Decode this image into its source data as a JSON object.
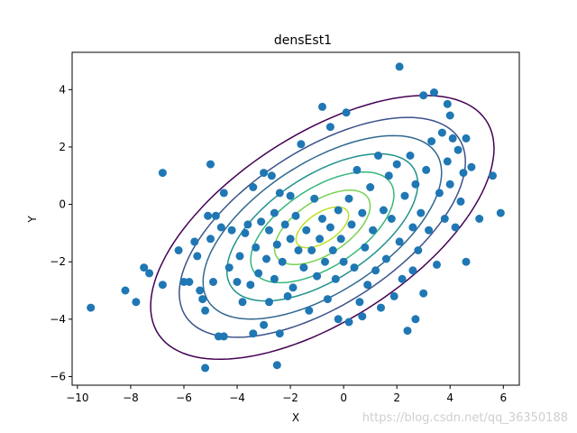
{
  "chart_data": {
    "type": "scatter",
    "title": "densEst1",
    "xlabel": "X",
    "ylabel": "Y",
    "xlim": [
      -10.2,
      6.6
    ],
    "ylim": [
      -6.3,
      5.3
    ],
    "xticks": [
      -10,
      -8,
      -6,
      -4,
      -2,
      0,
      2,
      4,
      6
    ],
    "yticks": [
      -6,
      -4,
      -2,
      0,
      2,
      4
    ],
    "grid": false,
    "point_color": "#1f77b4",
    "points": [
      [
        -9.5,
        -3.6
      ],
      [
        -8.2,
        -3.0
      ],
      [
        -7.8,
        -3.4
      ],
      [
        -7.5,
        -2.2
      ],
      [
        -7.3,
        -2.4
      ],
      [
        -6.8,
        1.1
      ],
      [
        -6.8,
        -2.8
      ],
      [
        -6.2,
        -1.6
      ],
      [
        -6.0,
        -2.7
      ],
      [
        -5.8,
        -2.7
      ],
      [
        -5.6,
        -1.3
      ],
      [
        -5.5,
        -1.8
      ],
      [
        -5.4,
        -3.0
      ],
      [
        -5.3,
        -3.3
      ],
      [
        -5.2,
        -3.7
      ],
      [
        -5.2,
        -5.7
      ],
      [
        -5.1,
        -0.4
      ],
      [
        -5.0,
        -1.2
      ],
      [
        -5.0,
        1.4
      ],
      [
        -4.9,
        -2.7
      ],
      [
        -4.8,
        -0.4
      ],
      [
        -4.7,
        -4.6
      ],
      [
        -4.6,
        -0.8
      ],
      [
        -4.5,
        -4.6
      ],
      [
        -4.5,
        0.4
      ],
      [
        -4.3,
        -2.2
      ],
      [
        -4.2,
        -0.9
      ],
      [
        -4.0,
        -2.7
      ],
      [
        -3.9,
        -1.8
      ],
      [
        -3.8,
        -3.4
      ],
      [
        -3.7,
        -1.0
      ],
      [
        -3.6,
        -0.7
      ],
      [
        -3.5,
        -2.8
      ],
      [
        -3.4,
        -4.5
      ],
      [
        -3.4,
        0.6
      ],
      [
        -3.3,
        -1.5
      ],
      [
        -3.2,
        -2.4
      ],
      [
        -3.1,
        -0.6
      ],
      [
        -3.0,
        -4.2
      ],
      [
        -3.0,
        1.1
      ],
      [
        -2.9,
        -1.9
      ],
      [
        -2.8,
        -0.9
      ],
      [
        -2.8,
        -3.4
      ],
      [
        -2.7,
        1.0
      ],
      [
        -2.6,
        -2.6
      ],
      [
        -2.6,
        -0.3
      ],
      [
        -2.5,
        -1.4
      ],
      [
        -2.4,
        -4.5
      ],
      [
        -2.4,
        0.4
      ],
      [
        -2.3,
        -2.0
      ],
      [
        -2.2,
        -0.7
      ],
      [
        -2.1,
        -3.2
      ],
      [
        -2.0,
        -1.2
      ],
      [
        -2.0,
        0.3
      ],
      [
        -1.9,
        -2.9
      ],
      [
        -1.8,
        -0.4
      ],
      [
        -1.7,
        -1.6
      ],
      [
        -1.6,
        2.1
      ],
      [
        -1.5,
        -2.2
      ],
      [
        -1.4,
        -0.9
      ],
      [
        -1.3,
        -3.7
      ],
      [
        -1.2,
        -1.6
      ],
      [
        -1.1,
        0.2
      ],
      [
        -1.0,
        -2.5
      ],
      [
        -0.9,
        -1.2
      ],
      [
        -0.8,
        -0.5
      ],
      [
        -0.8,
        3.4
      ],
      [
        -0.7,
        -2.0
      ],
      [
        -0.6,
        -3.3
      ],
      [
        -0.5,
        2.7
      ],
      [
        -0.5,
        -0.8
      ],
      [
        -0.4,
        -1.6
      ],
      [
        -0.3,
        -2.6
      ],
      [
        -0.2,
        -0.2
      ],
      [
        -0.2,
        -4.0
      ],
      [
        -0.1,
        -1.2
      ],
      [
        0.0,
        -2.0
      ],
      [
        0.1,
        3.2
      ],
      [
        0.2,
        0.2
      ],
      [
        0.2,
        -4.1
      ],
      [
        0.3,
        -0.7
      ],
      [
        0.4,
        -2.2
      ],
      [
        0.5,
        1.2
      ],
      [
        0.6,
        -3.4
      ],
      [
        0.7,
        -0.3
      ],
      [
        0.8,
        -1.5
      ],
      [
        0.9,
        -2.8
      ],
      [
        1.0,
        0.6
      ],
      [
        1.1,
        -0.9
      ],
      [
        1.2,
        -2.3
      ],
      [
        1.3,
        1.7
      ],
      [
        1.4,
        -3.6
      ],
      [
        1.5,
        -0.2
      ],
      [
        1.6,
        -1.9
      ],
      [
        1.7,
        1.0
      ],
      [
        1.8,
        -0.5
      ],
      [
        1.9,
        -3.2
      ],
      [
        2.0,
        1.4
      ],
      [
        2.1,
        4.8
      ],
      [
        2.1,
        -1.3
      ],
      [
        2.2,
        -2.6
      ],
      [
        2.3,
        0.3
      ],
      [
        2.4,
        -4.4
      ],
      [
        2.5,
        1.7
      ],
      [
        2.6,
        -0.8
      ],
      [
        2.6,
        -2.3
      ],
      [
        2.7,
        0.7
      ],
      [
        2.8,
        -1.6
      ],
      [
        2.9,
        -0.3
      ],
      [
        3.0,
        3.8
      ],
      [
        3.0,
        -3.1
      ],
      [
        3.1,
        1.2
      ],
      [
        3.2,
        -0.9
      ],
      [
        3.3,
        2.2
      ],
      [
        3.4,
        3.9
      ],
      [
        3.5,
        -2.1
      ],
      [
        3.6,
        0.4
      ],
      [
        3.7,
        2.5
      ],
      [
        3.8,
        -0.5
      ],
      [
        3.9,
        1.5
      ],
      [
        4.0,
        3.1
      ],
      [
        4.0,
        0.7
      ],
      [
        4.1,
        2.3
      ],
      [
        4.2,
        -0.8
      ],
      [
        4.3,
        1.9
      ],
      [
        4.4,
        0.1
      ],
      [
        4.5,
        1.1
      ],
      [
        4.6,
        2.3
      ],
      [
        4.6,
        -2.0
      ],
      [
        4.8,
        1.3
      ],
      [
        5.1,
        -0.5
      ],
      [
        5.6,
        1.0
      ],
      [
        5.9,
        -0.3
      ],
      [
        2.7,
        -4.0
      ],
      [
        -2.5,
        -5.6
      ],
      [
        0.7,
        -3.9
      ],
      [
        3.9,
        3.5
      ]
    ],
    "contours": {
      "type": "ellipse",
      "center": [
        -0.8,
        -0.8
      ],
      "angle_deg": 30,
      "levels": [
        {
          "rx": 7.2,
          "ry": 3.3,
          "color": "#440154"
        },
        {
          "rx": 6.0,
          "ry": 2.75,
          "color": "#3b528b"
        },
        {
          "rx": 5.0,
          "ry": 2.3,
          "color": "#31688e"
        },
        {
          "rx": 4.0,
          "ry": 1.85,
          "color": "#21918c"
        },
        {
          "rx": 3.0,
          "ry": 1.4,
          "color": "#35b779"
        },
        {
          "rx": 2.0,
          "ry": 0.95,
          "color": "#7ad151"
        },
        {
          "rx": 1.1,
          "ry": 0.52,
          "color": "#bddf26"
        }
      ]
    }
  },
  "watermark": "https://blog.csdn.net/qq_36350188"
}
